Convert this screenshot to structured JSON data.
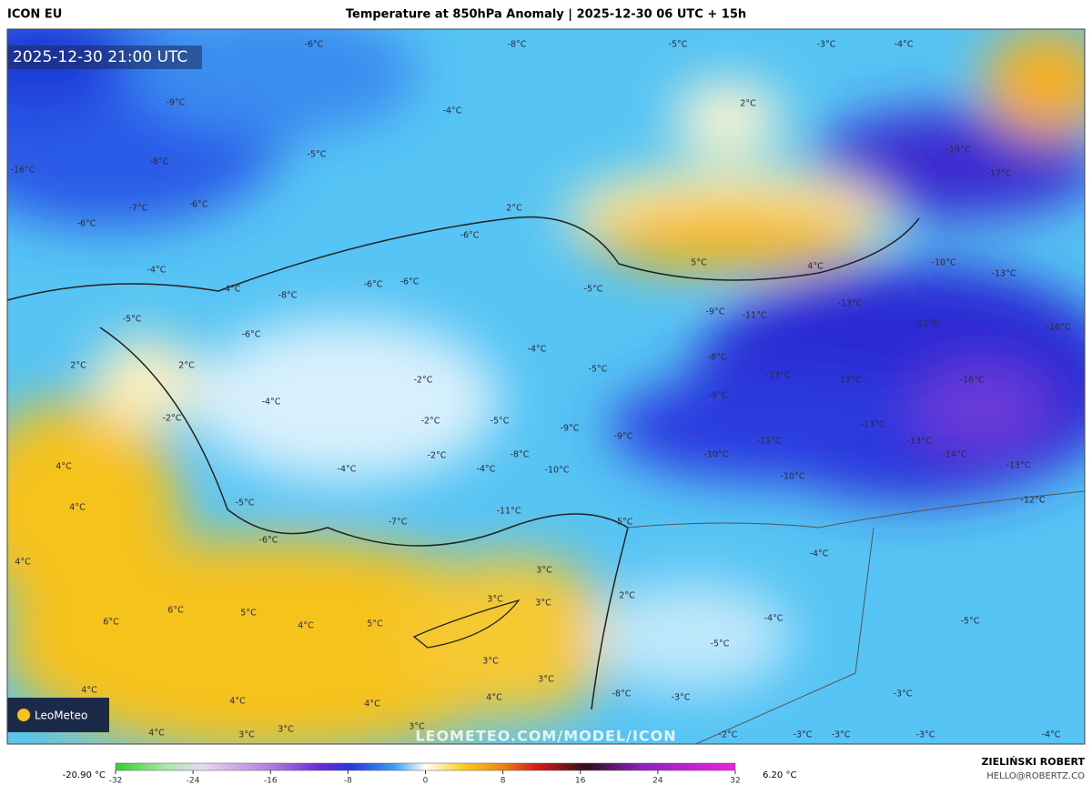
{
  "header": {
    "model": "ICON EU",
    "title": "Temperature at 850hPa Anomaly | 2025-12-30 06 UTC + 15h"
  },
  "valid_time": "2025-12-30 21:00 UTC",
  "logo": "LeoMeteo",
  "watermark": "LEOMETEO.COM/MODEL/ICON",
  "author": {
    "name": "ZIELIŃSKI ROBERT",
    "email": "HELLO@ROBERTZ.CO"
  },
  "colorbar": {
    "min_label": "-20.90 °C",
    "max_label": "6.20 °C",
    "range": [
      -32,
      32
    ],
    "ticks": [
      -32,
      -24,
      -16,
      -8,
      0,
      8,
      16,
      24,
      32
    ]
  },
  "map_labels": [
    "-6°C",
    "-8°C",
    "-5°C",
    "-3°C",
    "-4°C",
    "-9°C",
    "-4°C",
    "-5°C",
    "-8°C",
    "-16°C",
    "2°C",
    "-19°C",
    "-17°C",
    "-6°C",
    "-7°C",
    "2°C",
    "-6°C",
    "-6°C",
    "5°C",
    "4°C",
    "-10°C",
    "-13°C",
    "-4°C",
    "-4°C",
    "-8°C",
    "-6°C",
    "-6°C",
    "-5°C",
    "-13°C",
    "-9°C",
    "-11°C",
    "-12°C",
    "-16°C",
    "-5°C",
    "-6°C",
    "-4°C",
    "-8°C",
    "2°C",
    "2°C",
    "-2°C",
    "-5°C",
    "-13°C",
    "-13°C",
    "-16°C",
    "-9°C",
    "-4°C",
    "-2°C",
    "-2°C",
    "-5°C",
    "-9°C",
    "-13°C",
    "-9°C",
    "-11°C",
    "-13°C",
    "-14°C",
    "-2°C",
    "-8°C",
    "-10°C",
    "-4°C",
    "-10°C",
    "-10°C",
    "-13°C",
    "4°C",
    "-4°C",
    "-12°C",
    "-5°C",
    "4°C",
    "-11°C",
    "-7°C",
    "-5°C",
    "-6°C",
    "4°C",
    "3°C",
    "-4°C",
    "2°C",
    "3°C",
    "3°C",
    "-4°C",
    "-5°C",
    "6°C",
    "6°C",
    "5°C",
    "4°C",
    "5°C",
    "3°C",
    "-5°C",
    "3°C",
    "4°C",
    "4°C",
    "4°C",
    "4°C",
    "-8°C",
    "-3°C",
    "-3°C",
    "4°C",
    "3°C",
    "3°C",
    "3°C",
    "-2°C",
    "-3°C",
    "-3°C",
    "-3°C",
    "-4°C"
  ]
}
